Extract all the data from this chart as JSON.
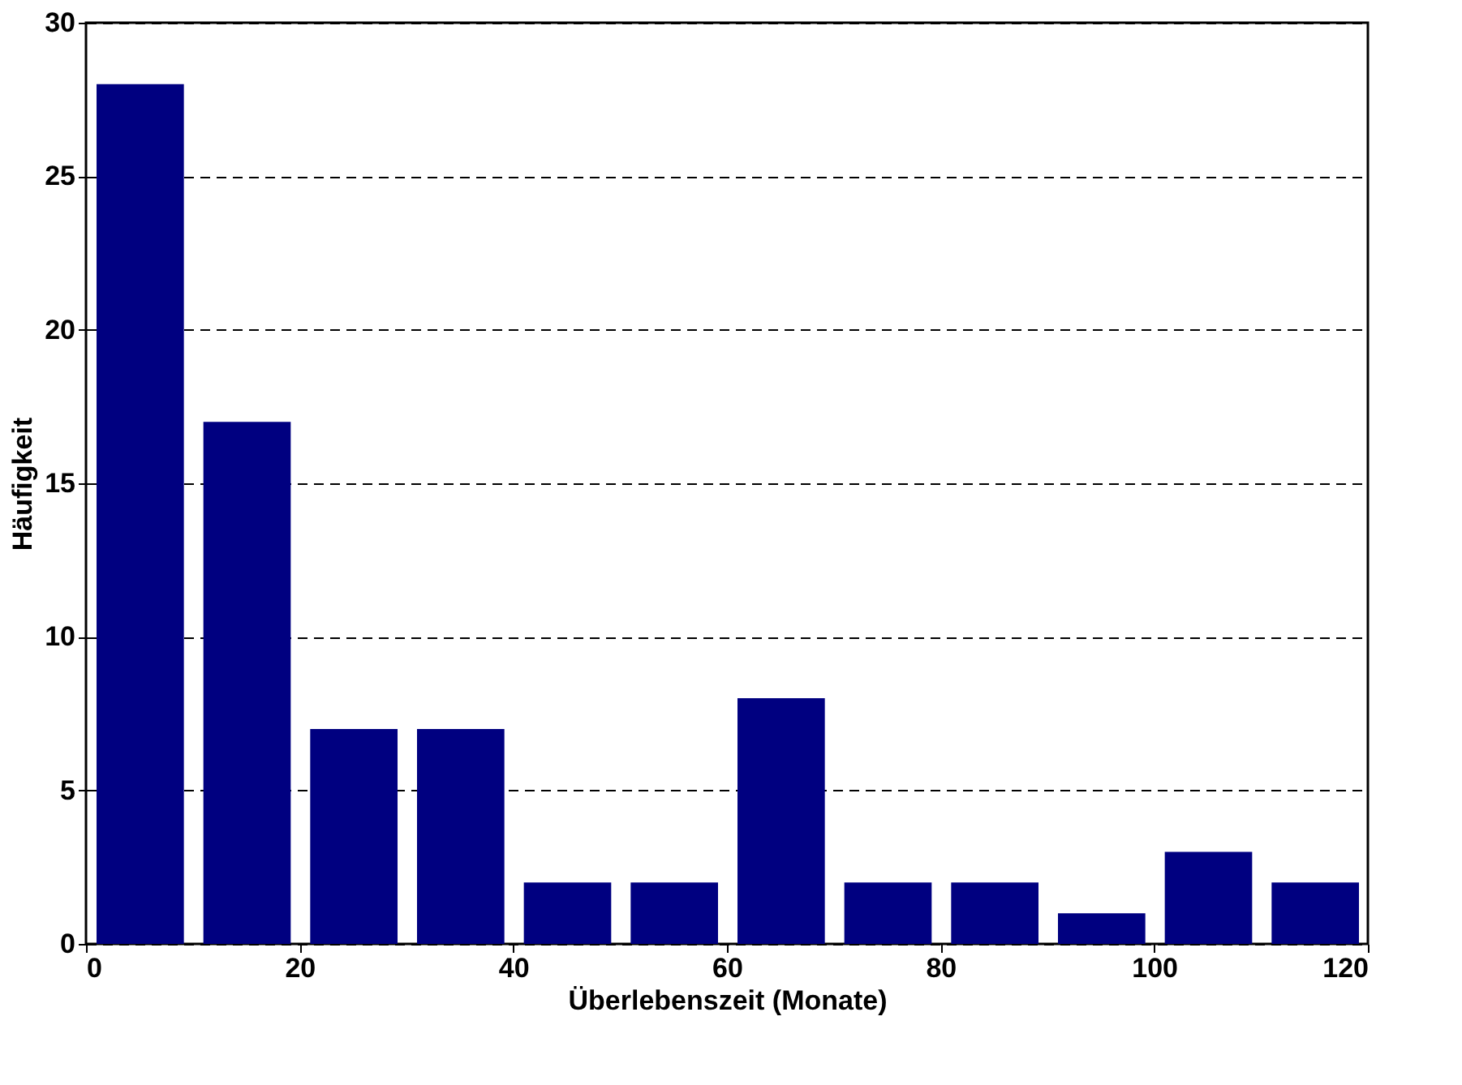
{
  "chart_data": {
    "type": "histogram",
    "xlabel": "Überlebenszeit (Monate)",
    "ylabel": "Häufigkeit",
    "bins": [
      0,
      10,
      20,
      30,
      40,
      50,
      60,
      70,
      80,
      90,
      100,
      110,
      120
    ],
    "values": [
      28,
      17,
      7,
      7,
      2,
      2,
      8,
      2,
      2,
      1,
      3,
      2
    ],
    "color": "#000080",
    "xlim": [
      0,
      120
    ],
    "xticks": [
      0,
      20,
      40,
      60,
      80,
      100,
      120
    ],
    "ylim": [
      0,
      30
    ],
    "yticks": [
      0,
      5,
      10,
      15,
      20,
      25,
      30
    ],
    "grid": "y",
    "line_style": "dashed"
  }
}
